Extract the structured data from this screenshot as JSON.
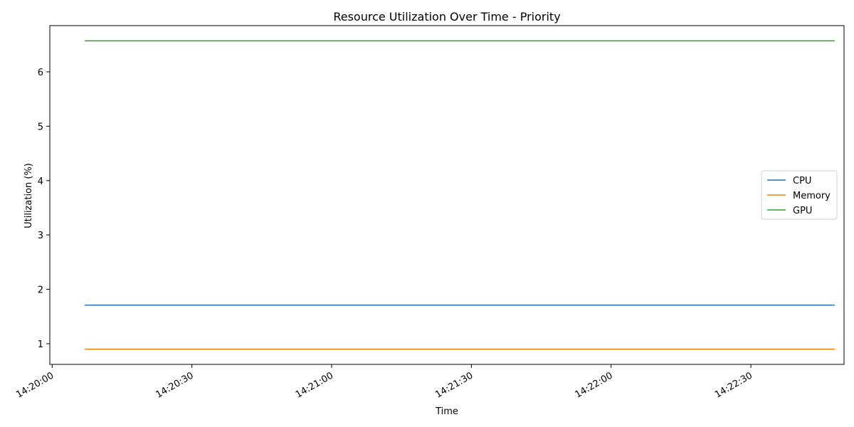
{
  "chart_data": {
    "type": "line",
    "title": "Resource Utilization Over Time - Priority",
    "xlabel": "Time",
    "ylabel": "Utilization (%)",
    "x_tick_labels": [
      "14:20:00",
      "14:20:30",
      "14:21:00",
      "14:21:30",
      "14:22:00",
      "14:22:30"
    ],
    "y_tick_labels": [
      "1",
      "2",
      "3",
      "4",
      "5",
      "6"
    ],
    "x": [
      "14:20:07",
      "14:22:48"
    ],
    "xlim": [
      "14:19:59.5",
      "14:22:50"
    ],
    "ylim": [
      0.62,
      6.85
    ],
    "grid": false,
    "legend_position": "center-right",
    "series": [
      {
        "name": "CPU",
        "color": "#1f77b4",
        "values": [
          1.71,
          1.71
        ]
      },
      {
        "name": "Memory",
        "color": "#ff7f0e",
        "values": [
          0.9,
          0.9
        ]
      },
      {
        "name": "GPU",
        "color": "#2ca02c",
        "values": [
          6.57,
          6.57
        ]
      }
    ]
  }
}
